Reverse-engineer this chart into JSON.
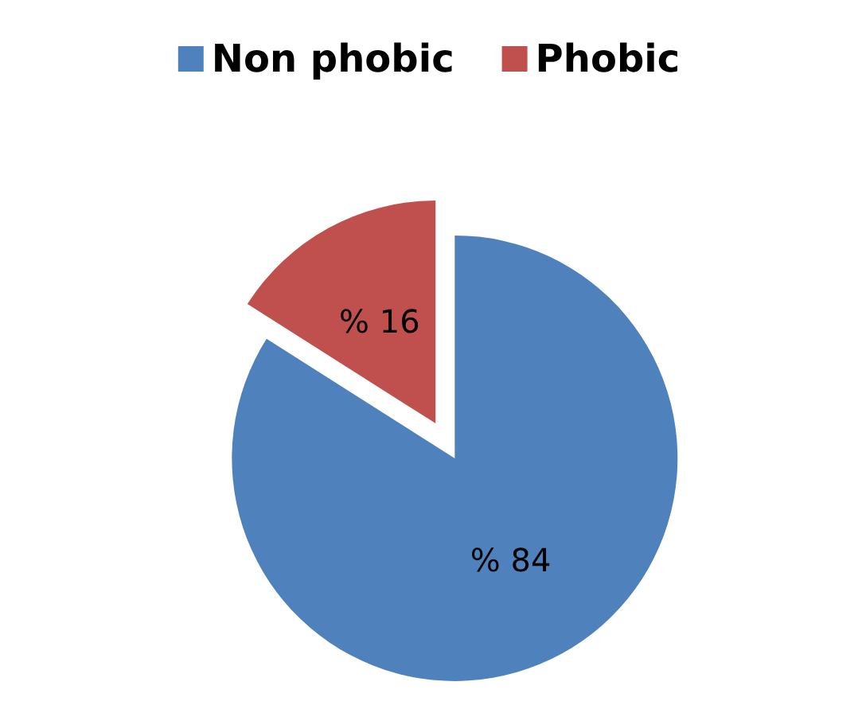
{
  "chart_data": {
    "type": "pie",
    "categories": [
      "Non phobic",
      "Phobic"
    ],
    "values": [
      84,
      16
    ],
    "colors": [
      "#4f81bd",
      "#c0504d"
    ],
    "value_labels": [
      "% 84",
      "% 16"
    ],
    "legend": "top"
  }
}
